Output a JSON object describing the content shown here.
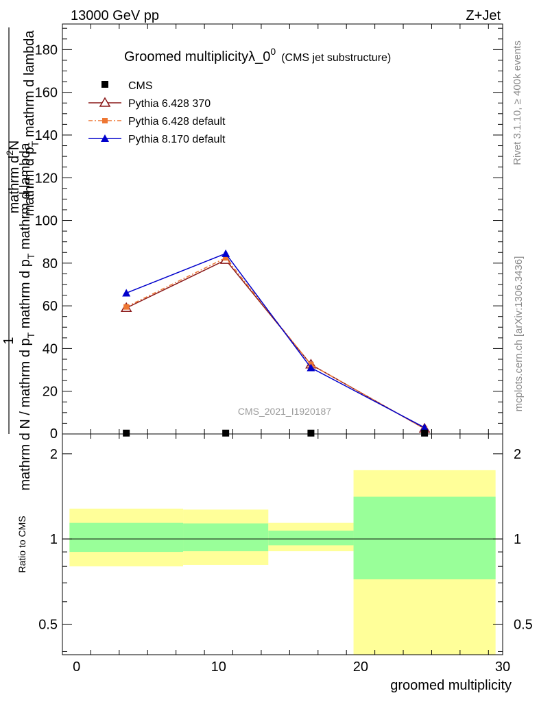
{
  "header": {
    "energy_label": "13000 GeV pp",
    "process_label": "Z+Jet"
  },
  "side_labels": {
    "rivet": "Rivet 3.1.10, ≥ 400k events",
    "mcplots": "mcplots.cern.ch [arXiv:1306.3436]"
  },
  "chart_data": [
    {
      "panel": "main",
      "type": "line",
      "title_main": "Groomed multiplicityλ_0",
      "title_sup": "0",
      "title_suffix": "(CMS jet substructure)",
      "analysis_label": "CMS_2021_I1920187",
      "ylabel_numerator": "mathrm d",
      "ylabel_numerator_sup": "2",
      "ylabel_numerator_end": "N",
      "ylabel_line1": "mathrm d p",
      "ylabel_line1_sub": "T",
      "ylabel_line1_end": " mathrm d lambda",
      "ylabel_one": "1",
      "ylabel_denominator": "mathrm d N / mathrm d p",
      "ylabel_denominator_sub": "T",
      "ylabel_denominator_end": " mathrm d p",
      "ylabel_denominator_sub2": "T",
      "ylabel_denominator_tail": " mathrm d lambda",
      "xlim": [
        -1,
        30
      ],
      "ylim": [
        0,
        192
      ],
      "yticks": [
        20,
        40,
        60,
        80,
        100,
        120,
        140,
        160,
        180
      ],
      "ytick_labels": [
        "20",
        "40",
        "60",
        "80",
        "100",
        "120",
        "140",
        "160",
        "180"
      ],
      "y_zero_label": "0",
      "x": [
        3.5,
        10.5,
        16.5,
        24.5
      ],
      "series": [
        {
          "name": "CMS",
          "marker": "square",
          "color": "#000000",
          "values": [
            0.4,
            0.4,
            0.4,
            0.4
          ],
          "errors": [
            0,
            0,
            0,
            0
          ]
        },
        {
          "name": "Pythia 6.428 370",
          "marker": "triangle-open",
          "color": "#8b1a1a",
          "values": [
            59,
            81.5,
            32.5,
            2.5
          ],
          "errors": [
            0,
            0,
            0,
            0
          ]
        },
        {
          "name": "Pythia 6.428 default",
          "marker": "square-small",
          "color": "#ee7733",
          "dashed": true,
          "values": [
            59.5,
            82.5,
            32.5,
            2.5
          ],
          "errors": [
            0,
            0,
            0,
            0
          ]
        },
        {
          "name": "Pythia 8.170 default",
          "marker": "triangle",
          "color": "#0000cc",
          "values": [
            66,
            84.5,
            31,
            3
          ],
          "errors": [
            1,
            1.5,
            0.5,
            0
          ]
        }
      ]
    },
    {
      "panel": "ratio",
      "type": "area",
      "ylabel": "Ratio to CMS",
      "xlabel": "groomed multiplicity",
      "xlim": [
        -1,
        30
      ],
      "ylim": [
        0.39,
        2.35
      ],
      "log_y": true,
      "yticks": [
        0.5,
        1,
        2
      ],
      "ytick_labels": [
        "0.5",
        "1",
        "2"
      ],
      "xticks": [
        0,
        10,
        20,
        30
      ],
      "xtick_labels": [
        "0",
        "10",
        "20",
        "30"
      ],
      "reference": 1,
      "bins": [
        {
          "x_low": -0.5,
          "x_high": 7.5,
          "yellow_low": 0.8,
          "yellow_high": 1.28,
          "green_low": 0.9,
          "green_high": 1.14
        },
        {
          "x_low": 7.5,
          "x_high": 13.5,
          "yellow_low": 0.81,
          "yellow_high": 1.27,
          "green_low": 0.905,
          "green_high": 1.135
        },
        {
          "x_low": 13.5,
          "x_high": 19.5,
          "yellow_low": 0.905,
          "yellow_high": 1.14,
          "green_low": 0.95,
          "green_high": 1.07
        },
        {
          "x_low": 19.5,
          "x_high": 29.5,
          "yellow_low": 0.39,
          "yellow_high": 1.75,
          "green_low": 0.72,
          "green_high": 1.41
        }
      ],
      "colors": {
        "yellow": "#ffff99",
        "green": "#99ff99"
      }
    }
  ]
}
